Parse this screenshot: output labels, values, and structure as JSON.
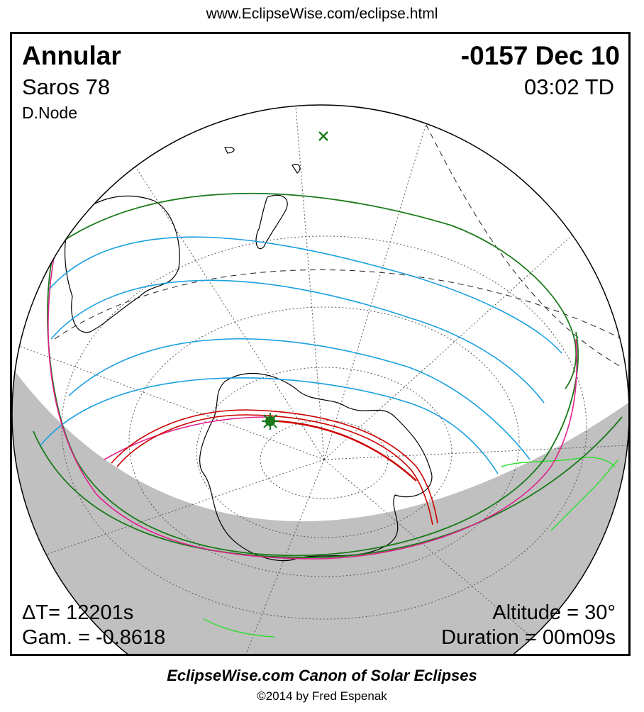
{
  "header": {
    "url": "www.EclipseWise.com/eclipse.html"
  },
  "eclipse": {
    "type": "Annular",
    "date": "-0157 Dec 10",
    "saros": "Saros  78",
    "time": "03:02 TD",
    "node": "D.Node"
  },
  "stats": {
    "delta_t": "ΔT=  12201s",
    "gamma": "Gam. = -0.8618",
    "altitude": "Altitude = 30°",
    "duration": "Duration = 00m09s"
  },
  "footer": {
    "canon": "EclipseWise.com Canon of Solar Eclipses",
    "copyright": "©2014 by Fred Espenak"
  },
  "map": {
    "projection": "orthographic",
    "center": "south-polar region",
    "night_shading": "#c0c0c0",
    "colors": {
      "central_path": "#cc0000",
      "penumbral_limits": "#1a7a1a",
      "magnitude_curves": "#1aa0e0",
      "rise_set_curves": "#e0208c",
      "coastlines": "#000000",
      "graticule": "#000000",
      "greatest_eclipse_marker": "#1a7a1a",
      "sub_solar_marker": "#1a7a1a",
      "night_coastlines": "#33dd33"
    }
  }
}
